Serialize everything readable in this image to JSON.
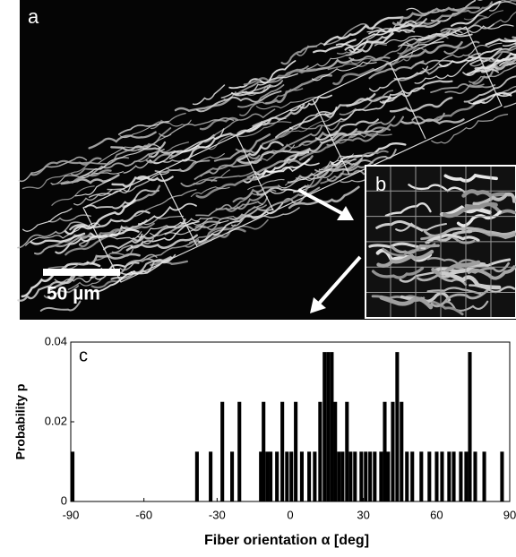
{
  "image": {
    "panel_a": "a",
    "panel_b": "b",
    "scale_bar": "50 µm"
  },
  "chart_data": {
    "type": "histogram",
    "panel_label": "c",
    "x_label": "Fiber orientation α [deg]",
    "y_label": "Probability p",
    "x": [
      -90,
      -39,
      -33.4,
      -28.6,
      -24.6,
      -21.6,
      -12.8,
      -11.7,
      -10.2,
      -8.8,
      -6.2,
      -4,
      -2.1,
      -0.3,
      1.5,
      4,
      7,
      9.3,
      11.5,
      13.3,
      14.8,
      16.3,
      17.7,
      19.2,
      20.7,
      22.5,
      24,
      25.8,
      28.4,
      30.2,
      32,
      33.9,
      36.5,
      38,
      39.4,
      41.3,
      43.1,
      44.9,
      47.1,
      49.3,
      53,
      56.3,
      59.3,
      61.5,
      64.4,
      66.3,
      69.2,
      71.4,
      72.9,
      75.1,
      78.8,
      86.1
    ],
    "values": [
      0.0125,
      0.0125,
      0.0125,
      0.025,
      0.0125,
      0.025,
      0.0125,
      0.025,
      0.0125,
      0.0125,
      0.0125,
      0.025,
      0.0125,
      0.0125,
      0.025,
      0.0125,
      0.0125,
      0.0125,
      0.025,
      0.0375,
      0.0375,
      0.0375,
      0.025,
      0.0125,
      0.0125,
      0.025,
      0.0125,
      0.0125,
      0.0125,
      0.0125,
      0.0125,
      0.0125,
      0.0125,
      0.025,
      0.0125,
      0.025,
      0.0375,
      0.025,
      0.0125,
      0.0125,
      0.0125,
      0.0125,
      0.0125,
      0.0125,
      0.0125,
      0.0125,
      0.0125,
      0.0125,
      0.0375,
      0.0125,
      0.0125,
      0.0125
    ],
    "color": "#000000",
    "xlim": [
      -90,
      90
    ],
    "ylim": [
      0,
      0.04
    ],
    "xticks": [
      -90,
      -60,
      -30,
      0,
      30,
      60,
      90
    ],
    "yticks": [
      0,
      0.02,
      0.04
    ]
  }
}
